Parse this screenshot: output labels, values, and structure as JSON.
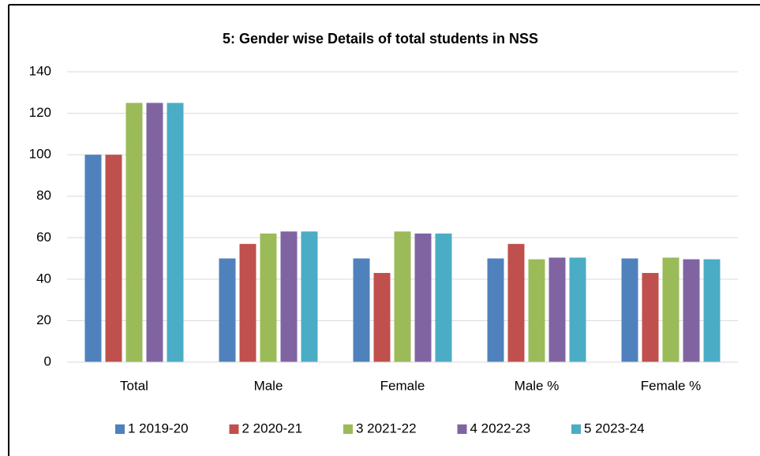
{
  "chart_data": {
    "type": "bar",
    "title": "5: Gender wise Details of total students in NSS",
    "categories": [
      "Total",
      "Male",
      "Female",
      "Male %",
      "Female %"
    ],
    "series": [
      {
        "name": "1 2019-20",
        "color": "#4f81bd",
        "values": [
          100,
          50,
          50,
          50,
          50
        ]
      },
      {
        "name": "2 2020-21",
        "color": "#c0504d",
        "values": [
          100,
          57,
          43,
          57,
          43
        ]
      },
      {
        "name": "3 2021-22",
        "color": "#9bbb59",
        "values": [
          125,
          62,
          63,
          49.6,
          50.4
        ]
      },
      {
        "name": "4 2022-23",
        "color": "#8064a2",
        "values": [
          125,
          63,
          62,
          50.4,
          49.6
        ]
      },
      {
        "name": "5 2023-24",
        "color": "#4bacc6",
        "values": [
          125,
          63,
          62,
          50.4,
          49.6
        ]
      }
    ],
    "ylim": [
      0,
      140
    ],
    "yticks": [
      0,
      20,
      40,
      60,
      80,
      100,
      120,
      140
    ],
    "grid": true,
    "legend": "bottom"
  }
}
